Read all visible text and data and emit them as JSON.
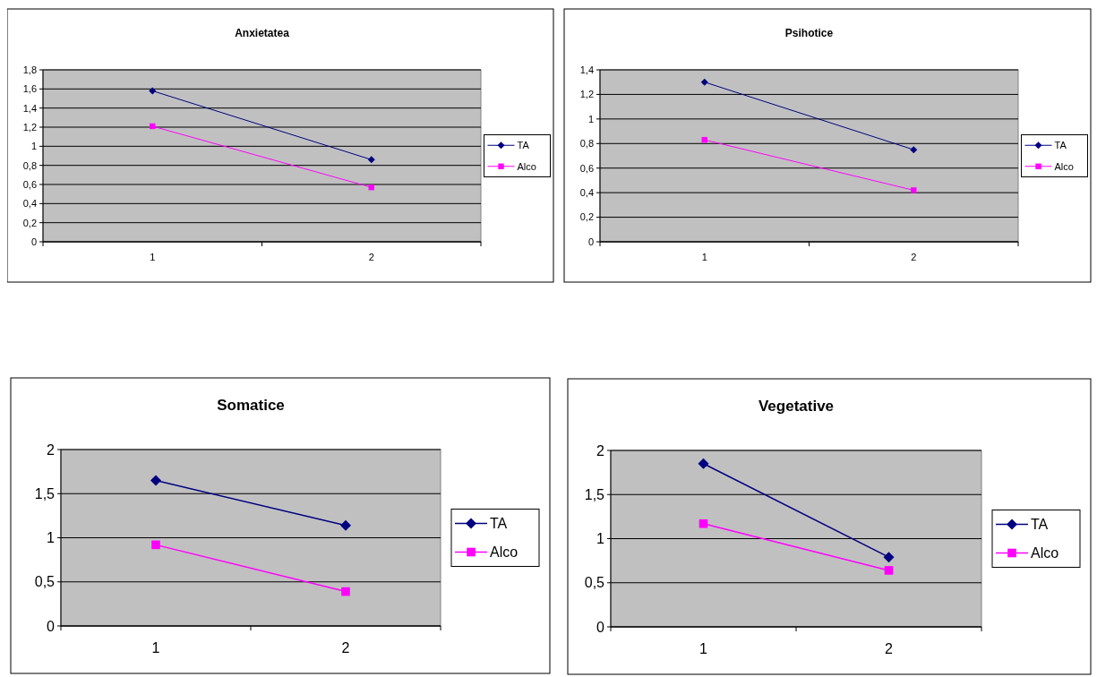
{
  "chart_data": [
    {
      "type": "line",
      "title": "Anxietatea",
      "categories": [
        "1",
        "2"
      ],
      "ylim": [
        0,
        1.8
      ],
      "yticks": [
        {
          "value": 0,
          "label": "0"
        },
        {
          "value": 0.2,
          "label": "0,2"
        },
        {
          "value": 0.4,
          "label": "0,4"
        },
        {
          "value": 0.6,
          "label": "0,6"
        },
        {
          "value": 0.8,
          "label": "0,8"
        },
        {
          "value": 1,
          "label": "1"
        },
        {
          "value": 1.2,
          "label": "1,2"
        },
        {
          "value": 1.4,
          "label": "1,4"
        },
        {
          "value": 1.6,
          "label": "1,6"
        },
        {
          "value": 1.8,
          "label": "1,8"
        }
      ],
      "grid": "y",
      "legend": "right",
      "series": [
        {
          "name": "TA",
          "color": "#000080",
          "marker": "diamond",
          "values": [
            1.58,
            0.86
          ]
        },
        {
          "name": "Alco",
          "color": "#ff00ff",
          "marker": "square",
          "values": [
            1.21,
            0.57
          ]
        }
      ]
    },
    {
      "type": "line",
      "title": "Psihotice",
      "categories": [
        "1",
        "2"
      ],
      "ylim": [
        0,
        1.4
      ],
      "yticks": [
        {
          "value": 0,
          "label": "0"
        },
        {
          "value": 0.2,
          "label": "0,2"
        },
        {
          "value": 0.4,
          "label": "0,4"
        },
        {
          "value": 0.6,
          "label": "0,6"
        },
        {
          "value": 0.8,
          "label": "0,8"
        },
        {
          "value": 1,
          "label": "1"
        },
        {
          "value": 1.2,
          "label": "1,2"
        },
        {
          "value": 1.4,
          "label": "1,4"
        }
      ],
      "grid": "y",
      "legend": "right",
      "series": [
        {
          "name": "TA",
          "color": "#000080",
          "marker": "diamond",
          "values": [
            1.3,
            0.75
          ]
        },
        {
          "name": "Alco",
          "color": "#ff00ff",
          "marker": "square",
          "values": [
            0.83,
            0.42
          ]
        }
      ]
    },
    {
      "type": "line",
      "title": "Somatice",
      "categories": [
        "1",
        "2"
      ],
      "ylim": [
        0,
        2
      ],
      "yticks": [
        {
          "value": 0,
          "label": "0"
        },
        {
          "value": 0.5,
          "label": "0,5"
        },
        {
          "value": 1,
          "label": "1"
        },
        {
          "value": 1.5,
          "label": "1,5"
        },
        {
          "value": 2,
          "label": "2"
        }
      ],
      "grid": "y",
      "legend": "right",
      "series": [
        {
          "name": "TA",
          "color": "#000080",
          "marker": "diamond",
          "values": [
            1.65,
            1.14
          ]
        },
        {
          "name": "Alco",
          "color": "#ff00ff",
          "marker": "square",
          "values": [
            0.92,
            0.39
          ]
        }
      ]
    },
    {
      "type": "line",
      "title": "Vegetative",
      "categories": [
        "1",
        "2"
      ],
      "ylim": [
        0,
        2
      ],
      "yticks": [
        {
          "value": 0,
          "label": "0"
        },
        {
          "value": 0.5,
          "label": "0,5"
        },
        {
          "value": 1,
          "label": "1"
        },
        {
          "value": 1.5,
          "label": "1,5"
        },
        {
          "value": 2,
          "label": "2"
        }
      ],
      "grid": "y",
      "legend": "right",
      "series": [
        {
          "name": "TA",
          "color": "#000080",
          "marker": "diamond",
          "values": [
            1.85,
            0.79
          ]
        },
        {
          "name": "Alco",
          "color": "#ff00ff",
          "marker": "square",
          "values": [
            1.17,
            0.64
          ]
        }
      ]
    }
  ]
}
